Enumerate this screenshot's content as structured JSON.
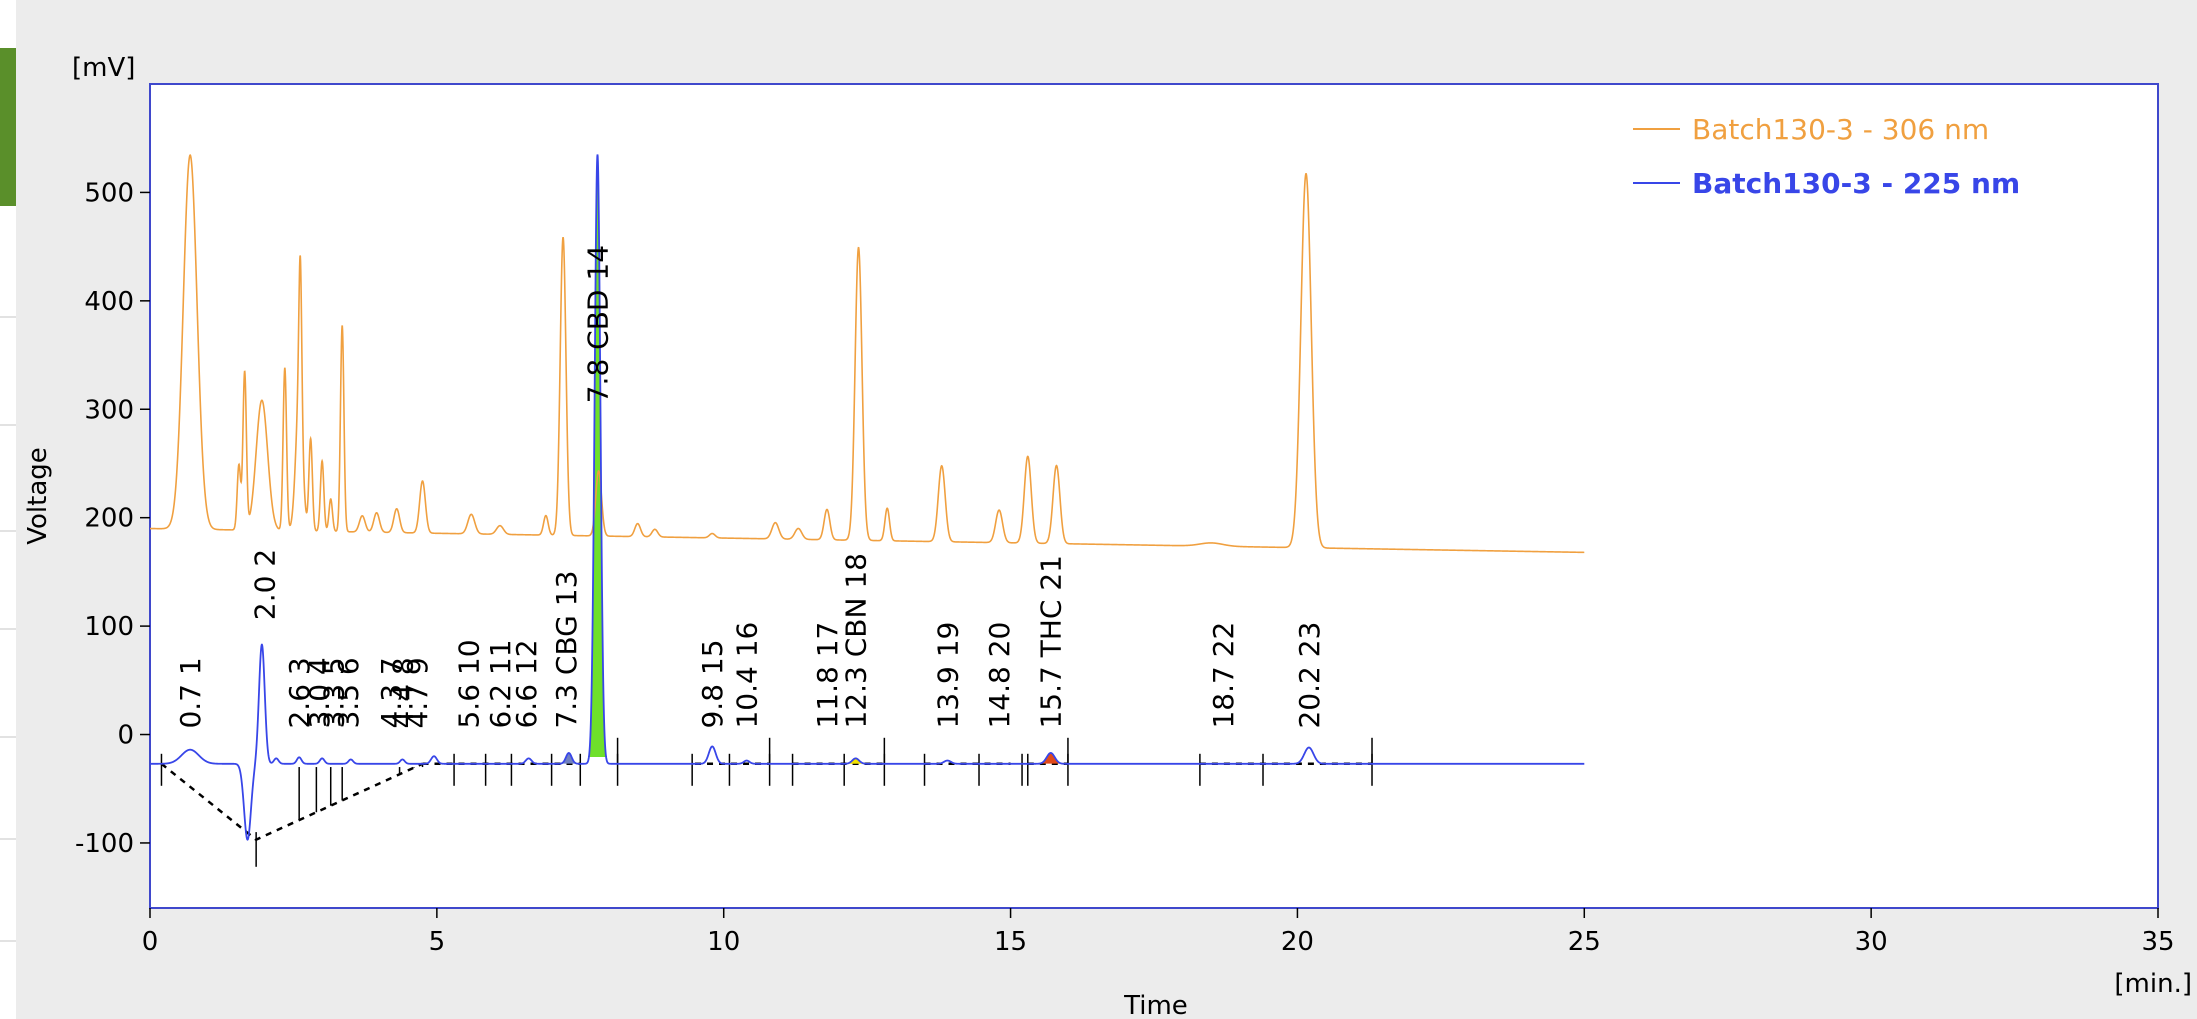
{
  "chart_data": {
    "type": "line",
    "ylabel": "Voltage",
    "xlabel": "Time",
    "y_unit": "[mV]",
    "x_unit": "[min.]",
    "xlim": [
      0,
      35
    ],
    "ylim": [
      -160,
      600
    ],
    "x_ticks": [
      0,
      5,
      10,
      15,
      20,
      25,
      30,
      35
    ],
    "y_ticks": [
      -100,
      0,
      100,
      200,
      300,
      400,
      500
    ],
    "grid": false,
    "legend_position": "top-right",
    "series": [
      {
        "name": "Batch130-3 - 306 nm",
        "color": "#f0a040",
        "baseline_start": 190,
        "baseline_end": 168,
        "x_end": 25,
        "peaks": [
          {
            "t": 0.7,
            "h": 345,
            "w": 0.12
          },
          {
            "t": 1.55,
            "h": 60,
            "w": 0.03
          },
          {
            "t": 1.65,
            "h": 145,
            "w": 0.03
          },
          {
            "t": 1.95,
            "h": 120,
            "w": 0.1
          },
          {
            "t": 2.35,
            "h": 150,
            "w": 0.03
          },
          {
            "t": 2.6,
            "h": 120,
            "w": 0.06
          },
          {
            "t": 2.62,
            "h": 140,
            "w": 0.025
          },
          {
            "t": 2.8,
            "h": 85,
            "w": 0.03
          },
          {
            "t": 3.0,
            "h": 65,
            "w": 0.03
          },
          {
            "t": 3.15,
            "h": 30,
            "w": 0.03
          },
          {
            "t": 3.35,
            "h": 190,
            "w": 0.03
          },
          {
            "t": 3.7,
            "h": 15,
            "w": 0.05
          },
          {
            "t": 3.95,
            "h": 18,
            "w": 0.05
          },
          {
            "t": 4.3,
            "h": 22,
            "w": 0.05
          },
          {
            "t": 4.75,
            "h": 48,
            "w": 0.05
          },
          {
            "t": 5.6,
            "h": 18,
            "w": 0.06
          },
          {
            "t": 6.1,
            "h": 8,
            "w": 0.06
          },
          {
            "t": 6.9,
            "h": 18,
            "w": 0.04
          },
          {
            "t": 7.2,
            "h": 275,
            "w": 0.05
          },
          {
            "t": 7.82,
            "h": 60,
            "w": 0.05
          },
          {
            "t": 8.5,
            "h": 12,
            "w": 0.05
          },
          {
            "t": 8.8,
            "h": 7,
            "w": 0.05
          },
          {
            "t": 9.8,
            "h": 4,
            "w": 0.05
          },
          {
            "t": 10.9,
            "h": 15,
            "w": 0.06
          },
          {
            "t": 11.3,
            "h": 10,
            "w": 0.06
          },
          {
            "t": 11.8,
            "h": 28,
            "w": 0.05
          },
          {
            "t": 12.35,
            "h": 270,
            "w": 0.06
          },
          {
            "t": 12.85,
            "h": 30,
            "w": 0.04
          },
          {
            "t": 13.8,
            "h": 70,
            "w": 0.06
          },
          {
            "t": 14.8,
            "h": 30,
            "w": 0.06
          },
          {
            "t": 15.3,
            "h": 80,
            "w": 0.06
          },
          {
            "t": 15.8,
            "h": 72,
            "w": 0.06
          },
          {
            "t": 18.5,
            "h": 3,
            "w": 0.2
          },
          {
            "t": 20.15,
            "h": 345,
            "w": 0.09
          }
        ]
      },
      {
        "name": "Batch130-3 - 225 nm",
        "color": "#3846e8",
        "baseline_start": -27,
        "baseline_end": -27,
        "x_end": 25,
        "peaks": [
          {
            "t": 0.7,
            "h": 13,
            "w": 0.15
          },
          {
            "t": 1.7,
            "h": -70,
            "w": 0.06
          },
          {
            "t": 1.95,
            "h": 110,
            "w": 0.05
          },
          {
            "t": 2.2,
            "h": 5,
            "w": 0.04
          },
          {
            "t": 2.6,
            "h": 6,
            "w": 0.04
          },
          {
            "t": 3.0,
            "h": 5,
            "w": 0.04
          },
          {
            "t": 3.5,
            "h": 4,
            "w": 0.04
          },
          {
            "t": 4.4,
            "h": 4,
            "w": 0.04
          },
          {
            "t": 4.95,
            "h": 7,
            "w": 0.05
          },
          {
            "t": 6.6,
            "h": 5,
            "w": 0.05
          },
          {
            "t": 7.3,
            "h": 10,
            "w": 0.05
          },
          {
            "t": 7.8,
            "h": 562,
            "w": 0.05
          },
          {
            "t": 9.8,
            "h": 16,
            "w": 0.06
          },
          {
            "t": 10.4,
            "h": 3,
            "w": 0.05
          },
          {
            "t": 12.3,
            "h": 5,
            "w": 0.06
          },
          {
            "t": 13.9,
            "h": 3,
            "w": 0.06
          },
          {
            "t": 15.7,
            "h": 10,
            "w": 0.07
          },
          {
            "t": 20.2,
            "h": 15,
            "w": 0.08
          }
        ]
      }
    ],
    "peak_labels": [
      {
        "num": "1",
        "time": "0.7",
        "t": 0.7,
        "label_top": 0
      },
      {
        "num": "2",
        "time": "2.0",
        "t": 2.0,
        "label_top": 100
      },
      {
        "num": "3",
        "time": "2.6",
        "t": 2.6,
        "label_top": 0
      },
      {
        "num": "4",
        "time": "3.0",
        "t": 2.95,
        "label_top": 0
      },
      {
        "num": "5",
        "time": "3.3",
        "t": 3.2,
        "label_top": 0
      },
      {
        "num": "6",
        "time": "3.5",
        "t": 3.45,
        "label_top": 0
      },
      {
        "num": "7",
        "time": "4.3",
        "t": 4.2,
        "label_top": 0
      },
      {
        "num": "8",
        "time": "4.4",
        "t": 4.4,
        "label_top": 0
      },
      {
        "num": "9",
        "time": "4.7",
        "t": 4.65,
        "label_top": 0
      },
      {
        "num": "10",
        "time": "5.6",
        "t": 5.55,
        "label_top": 0
      },
      {
        "num": "11",
        "time": "6.2",
        "t": 6.1,
        "label_top": 0
      },
      {
        "num": "12",
        "time": "6.6",
        "t": 6.55,
        "label_top": 0
      },
      {
        "num": "13",
        "time": "7.3 CBG",
        "t": 7.25,
        "label_top": 0
      },
      {
        "num": "14",
        "time": "7.8 CBD",
        "t": 7.8,
        "label_top": 300
      },
      {
        "num": "15",
        "time": "9.8",
        "t": 9.8,
        "label_top": 0
      },
      {
        "num": "16",
        "time": "10.4",
        "t": 10.4,
        "label_top": 0
      },
      {
        "num": "17",
        "time": "11.8",
        "t": 11.8,
        "label_top": 0
      },
      {
        "num": "18",
        "time": "12.3 CBN",
        "t": 12.3,
        "label_top": 0
      },
      {
        "num": "19",
        "time": "13.9",
        "t": 13.9,
        "label_top": 0
      },
      {
        "num": "20",
        "time": "14.8",
        "t": 14.8,
        "label_top": 0
      },
      {
        "num": "21",
        "time": "15.7 THC",
        "t": 15.7,
        "label_top": 0
      },
      {
        "num": "22",
        "time": "18.7",
        "t": 18.7,
        "label_top": 0
      },
      {
        "num": "23",
        "time": "20.2",
        "t": 20.2,
        "label_top": 0
      }
    ],
    "filled_peaks": [
      {
        "t": 7.25,
        "color": "#7080c0"
      },
      {
        "t": 7.8,
        "color": "#6ee02a"
      },
      {
        "t": 12.3,
        "color": "#f2e200"
      },
      {
        "t": 15.7,
        "color": "#e24a1a"
      }
    ]
  }
}
